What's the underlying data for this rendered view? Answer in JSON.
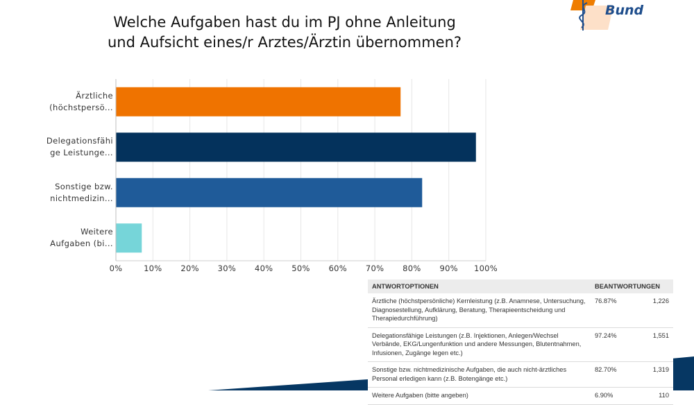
{
  "slide": {
    "title_line1": "Welche Aufgaben hast du im PJ ohne Anleitung",
    "title_line2": "und Aufsicht eines/r Arztes/Ärztin übernommen?"
  },
  "logo": {
    "text": "Bund",
    "colors": {
      "orange": "#ef7d00",
      "light": "#fde0c8",
      "blue": "#1f4e8c"
    }
  },
  "chart_data": {
    "type": "bar",
    "orientation": "horizontal",
    "title": "Welche Aufgaben hast du im PJ ohne Anleitung und Aufsicht eines/r Arztes/Ärztin übernommen?",
    "categories": [
      [
        "Ärztliche",
        "(höchstpersö..."
      ],
      [
        "Delegationsfähi",
        "ge Leistunge..."
      ],
      [
        "Sonstige bzw.",
        "nichtmedizin..."
      ],
      [
        "Weitere",
        "Aufgaben (bi..."
      ]
    ],
    "values": [
      76.87,
      97.24,
      82.7,
      6.9
    ],
    "colors": [
      "#ef7300",
      "#04325c",
      "#1f5b99",
      "#76d5d9"
    ],
    "xlim": [
      0,
      100
    ],
    "xticks": [
      "0%",
      "10%",
      "20%",
      "30%",
      "40%",
      "50%",
      "60%",
      "70%",
      "80%",
      "90%",
      "100%"
    ],
    "xlabel": "",
    "ylabel": "",
    "grid": true
  },
  "table": {
    "headers": {
      "options": "ANTWORTOPTIONEN",
      "responses": "BEANTWORTUNGEN"
    },
    "rows": [
      {
        "option": "Ärztliche (höchstpersönliche) Kernleistung (z.B. Anamnese, Untersuchung, Diagnosestellung, Aufklärung, Beratung, Therapieentscheidung und Therapiedurchführung)",
        "percent": "76.87%",
        "count": "1,226"
      },
      {
        "option": "Delegationsfähige Leistungen (z.B. Injektionen, Anlegen/Wechsel Verbände, EKG/Lungenfunktion und andere Messungen, Blutentnahmen, Infusionen, Zugänge legen etc.)",
        "percent": "97.24%",
        "count": "1,551"
      },
      {
        "option": "Sonstige bzw. nichtmedizinische Aufgaben, die auch nicht-ärztliches Personal erledigen kann (z.B. Botengänge etc.)",
        "percent": "82.70%",
        "count": "1,319"
      },
      {
        "option": "Weitere Aufgaben (bitte angeben)",
        "percent": "6.90%",
        "count": "110"
      }
    ]
  },
  "decoration": {
    "navy": "#063763"
  }
}
